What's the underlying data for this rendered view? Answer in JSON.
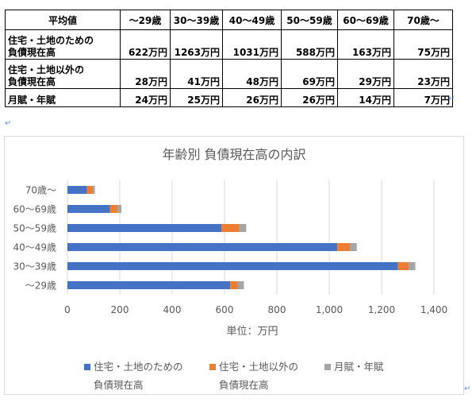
{
  "table": {
    "header": [
      "平均値",
      "～29歳",
      "30～39歳",
      "40～49歳",
      "50～59歳",
      "60～69歳",
      "70歳～"
    ],
    "rows": [
      {
        "label_lines": [
          "住宅・土地のための",
          "負債現在高"
        ],
        "values": [
          "622万円",
          "1263万円",
          "1031万円",
          "588万円",
          "163万円",
          "75万円"
        ]
      },
      {
        "label_lines": [
          "住宅・土地以外の",
          "負債現在高"
        ],
        "values": [
          "28万円",
          "41万円",
          "48万円",
          "69万円",
          "29万円",
          "23万円"
        ]
      },
      {
        "label_lines": [
          "月賦・年賦"
        ],
        "values": [
          "24万円",
          "25万円",
          "26万円",
          "26万円",
          "14万円",
          "7万円"
        ]
      }
    ]
  },
  "marks": {
    "return_symbol": "↵"
  },
  "chart_data": {
    "type": "bar",
    "orientation": "horizontal",
    "stacked": true,
    "title": "年齢別 負債現在高の内訳",
    "xlabel": "単位：万円",
    "ylabel": "",
    "xlim": [
      0,
      1400
    ],
    "xticks": [
      0,
      200,
      400,
      600,
      800,
      1000,
      1200,
      1400
    ],
    "xtick_labels": [
      "0",
      "200",
      "400",
      "600",
      "800",
      "1,000",
      "1,200",
      "1,400"
    ],
    "categories": [
      "～29歳",
      "30～39歳",
      "40～49歳",
      "50～59歳",
      "60～69歳",
      "70歳～"
    ],
    "series": [
      {
        "name": "住宅・土地のための負債現在高",
        "name_lines": [
          "住宅・土地のための",
          "負債現在高"
        ],
        "color": "#4472c4",
        "values": [
          622,
          1263,
          1031,
          588,
          163,
          75
        ]
      },
      {
        "name": "住宅・土地以外の負債現在高",
        "name_lines": [
          "住宅・土地以外の",
          "負債現在高"
        ],
        "color": "#ed7d31",
        "values": [
          28,
          41,
          48,
          69,
          29,
          23
        ]
      },
      {
        "name": "月賦・年賦",
        "name_lines": [
          "月賦・年賦"
        ],
        "color": "#a5a5a5",
        "values": [
          24,
          25,
          26,
          26,
          14,
          7
        ]
      }
    ],
    "grid": true,
    "legend_position": "bottom"
  }
}
